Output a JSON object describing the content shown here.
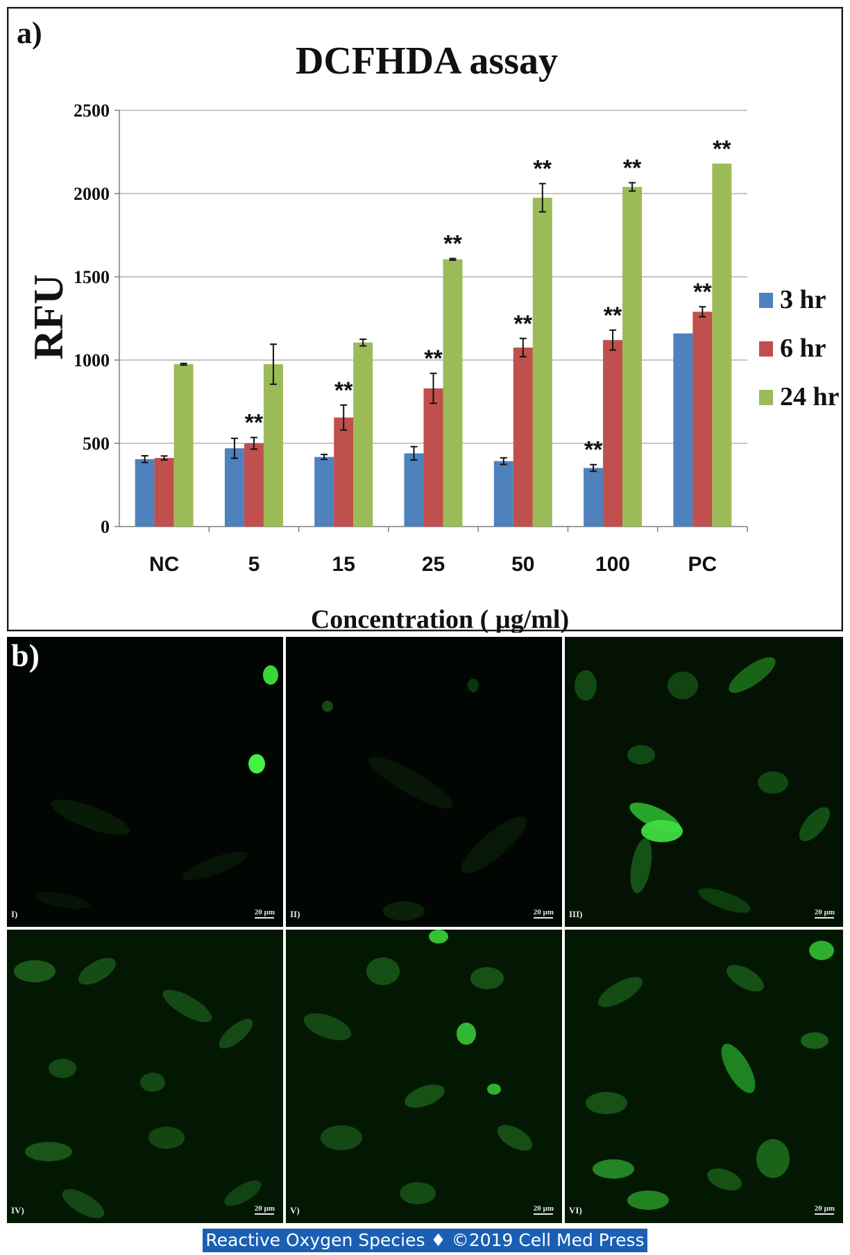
{
  "panel_a_label": "a)",
  "panel_b_label": "b)",
  "chart_data": {
    "type": "bar",
    "title": "DCFHDA assay",
    "xlabel": "Concentration ( µg/ml)",
    "ylabel": "RFU",
    "ylim": [
      0,
      2500
    ],
    "yticks": [
      "0",
      "500",
      "1000",
      "1500",
      "2000",
      "2500"
    ],
    "grid": true,
    "legend_position": "right",
    "categories": [
      "NC",
      "5",
      "15",
      "25",
      "50",
      "100",
      "PC"
    ],
    "series": [
      {
        "name": "3 hr",
        "color": "#4f81bd",
        "values": [
          405,
          470,
          418,
          440,
          393,
          352,
          1160
        ],
        "errors": [
          20,
          60,
          15,
          40,
          20,
          20,
          0
        ],
        "significance": [
          "",
          "",
          "",
          "",
          "",
          "**",
          ""
        ]
      },
      {
        "name": "6 hr",
        "color": "#c0504d",
        "values": [
          412,
          500,
          655,
          830,
          1075,
          1120,
          1290
        ],
        "errors": [
          12,
          35,
          75,
          90,
          55,
          60,
          30
        ],
        "significance": [
          "",
          "**",
          "**",
          "**",
          "**",
          "**",
          "**"
        ]
      },
      {
        "name": "24 hr",
        "color": "#9bbb59",
        "values": [
          975,
          975,
          1105,
          1605,
          1975,
          2040,
          2180
        ],
        "errors": [
          5,
          120,
          20,
          5,
          85,
          25,
          0
        ],
        "significance": [
          "",
          "",
          "",
          "**",
          "**",
          "**",
          "**"
        ]
      }
    ]
  },
  "micrographs": [
    {
      "label": "I)",
      "scale": "20 µm"
    },
    {
      "label": "II)",
      "scale": "20 µm"
    },
    {
      "label": "III)",
      "scale": "20 µm"
    },
    {
      "label": "IV)",
      "scale": "20 µm"
    },
    {
      "label": "V)",
      "scale": "20 µm"
    },
    {
      "label": "VI)",
      "scale": "20 µm"
    }
  ],
  "footer": "Reactive Oxygen Species ♦ ©2019 Cell Med Press"
}
